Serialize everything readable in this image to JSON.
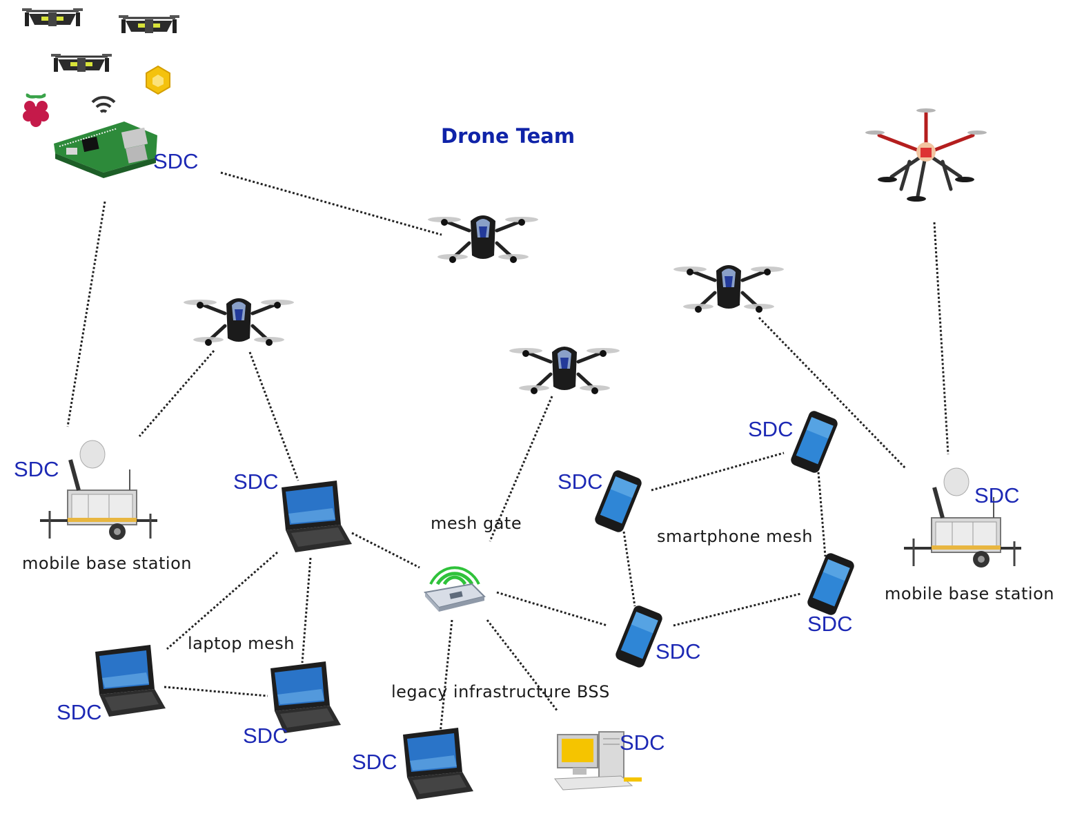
{
  "title": "Drone Team",
  "captions": {
    "mesh_gate": "mesh gate",
    "laptop_mesh": "laptop mesh",
    "smartphone_mesh": "smartphone mesh",
    "legacy_bss": "legacy infrastructure BSS",
    "mobile_base_left": "mobile base station",
    "mobile_base_right": "mobile base station"
  },
  "sdc_label": "SDC",
  "colors": {
    "sdc_text": "#1c28b4",
    "title_text": "#0f23a8",
    "link_line": "#222222",
    "wifi_green": "#2fc23a",
    "screen_blue": "#2a74c8"
  },
  "icons": {
    "raspberry_pi": "raspberry-pi-board-icon",
    "raspberry_logo": "raspberry-logo-icon",
    "wifi": "wifi-icon",
    "cube": "hex-cube-icon",
    "mini_drone": "mini-quadcopter-icon",
    "ar_drone": "ar-drone-icon",
    "hexacopter": "hexacopter-icon",
    "base_station": "mobile-base-trailer-icon",
    "laptop": "laptop-icon",
    "smartphone": "smartphone-icon",
    "router": "wifi-router-icon",
    "desktop": "desktop-computer-icon"
  }
}
